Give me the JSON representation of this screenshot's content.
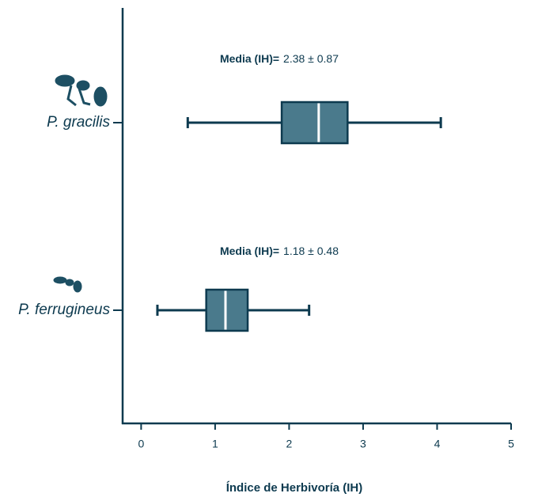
{
  "chart_data": {
    "type": "box",
    "categories": [
      "P. gracilis",
      "P. ferrugineus"
    ],
    "boxes": [
      {
        "min": 0.63,
        "q1": 1.9,
        "median": 2.4,
        "q3": 2.79,
        "max": 4.05
      },
      {
        "min": 0.22,
        "q1": 0.88,
        "median": 1.14,
        "q3": 1.44,
        "max": 2.27
      }
    ],
    "annotations": [
      {
        "label": "Media (IH)=",
        "text": "2.38 ± 0.87"
      },
      {
        "label": "Media (IH)=",
        "text": "1.18 ± 0.48"
      }
    ],
    "xlabel": "Índice de Herbivoría (IH)",
    "xlim": [
      -0.25,
      5
    ],
    "xticks": [
      0,
      1,
      2,
      3,
      4,
      5
    ],
    "color": "#4a7a8c",
    "line_color": "#0d3a4f"
  }
}
